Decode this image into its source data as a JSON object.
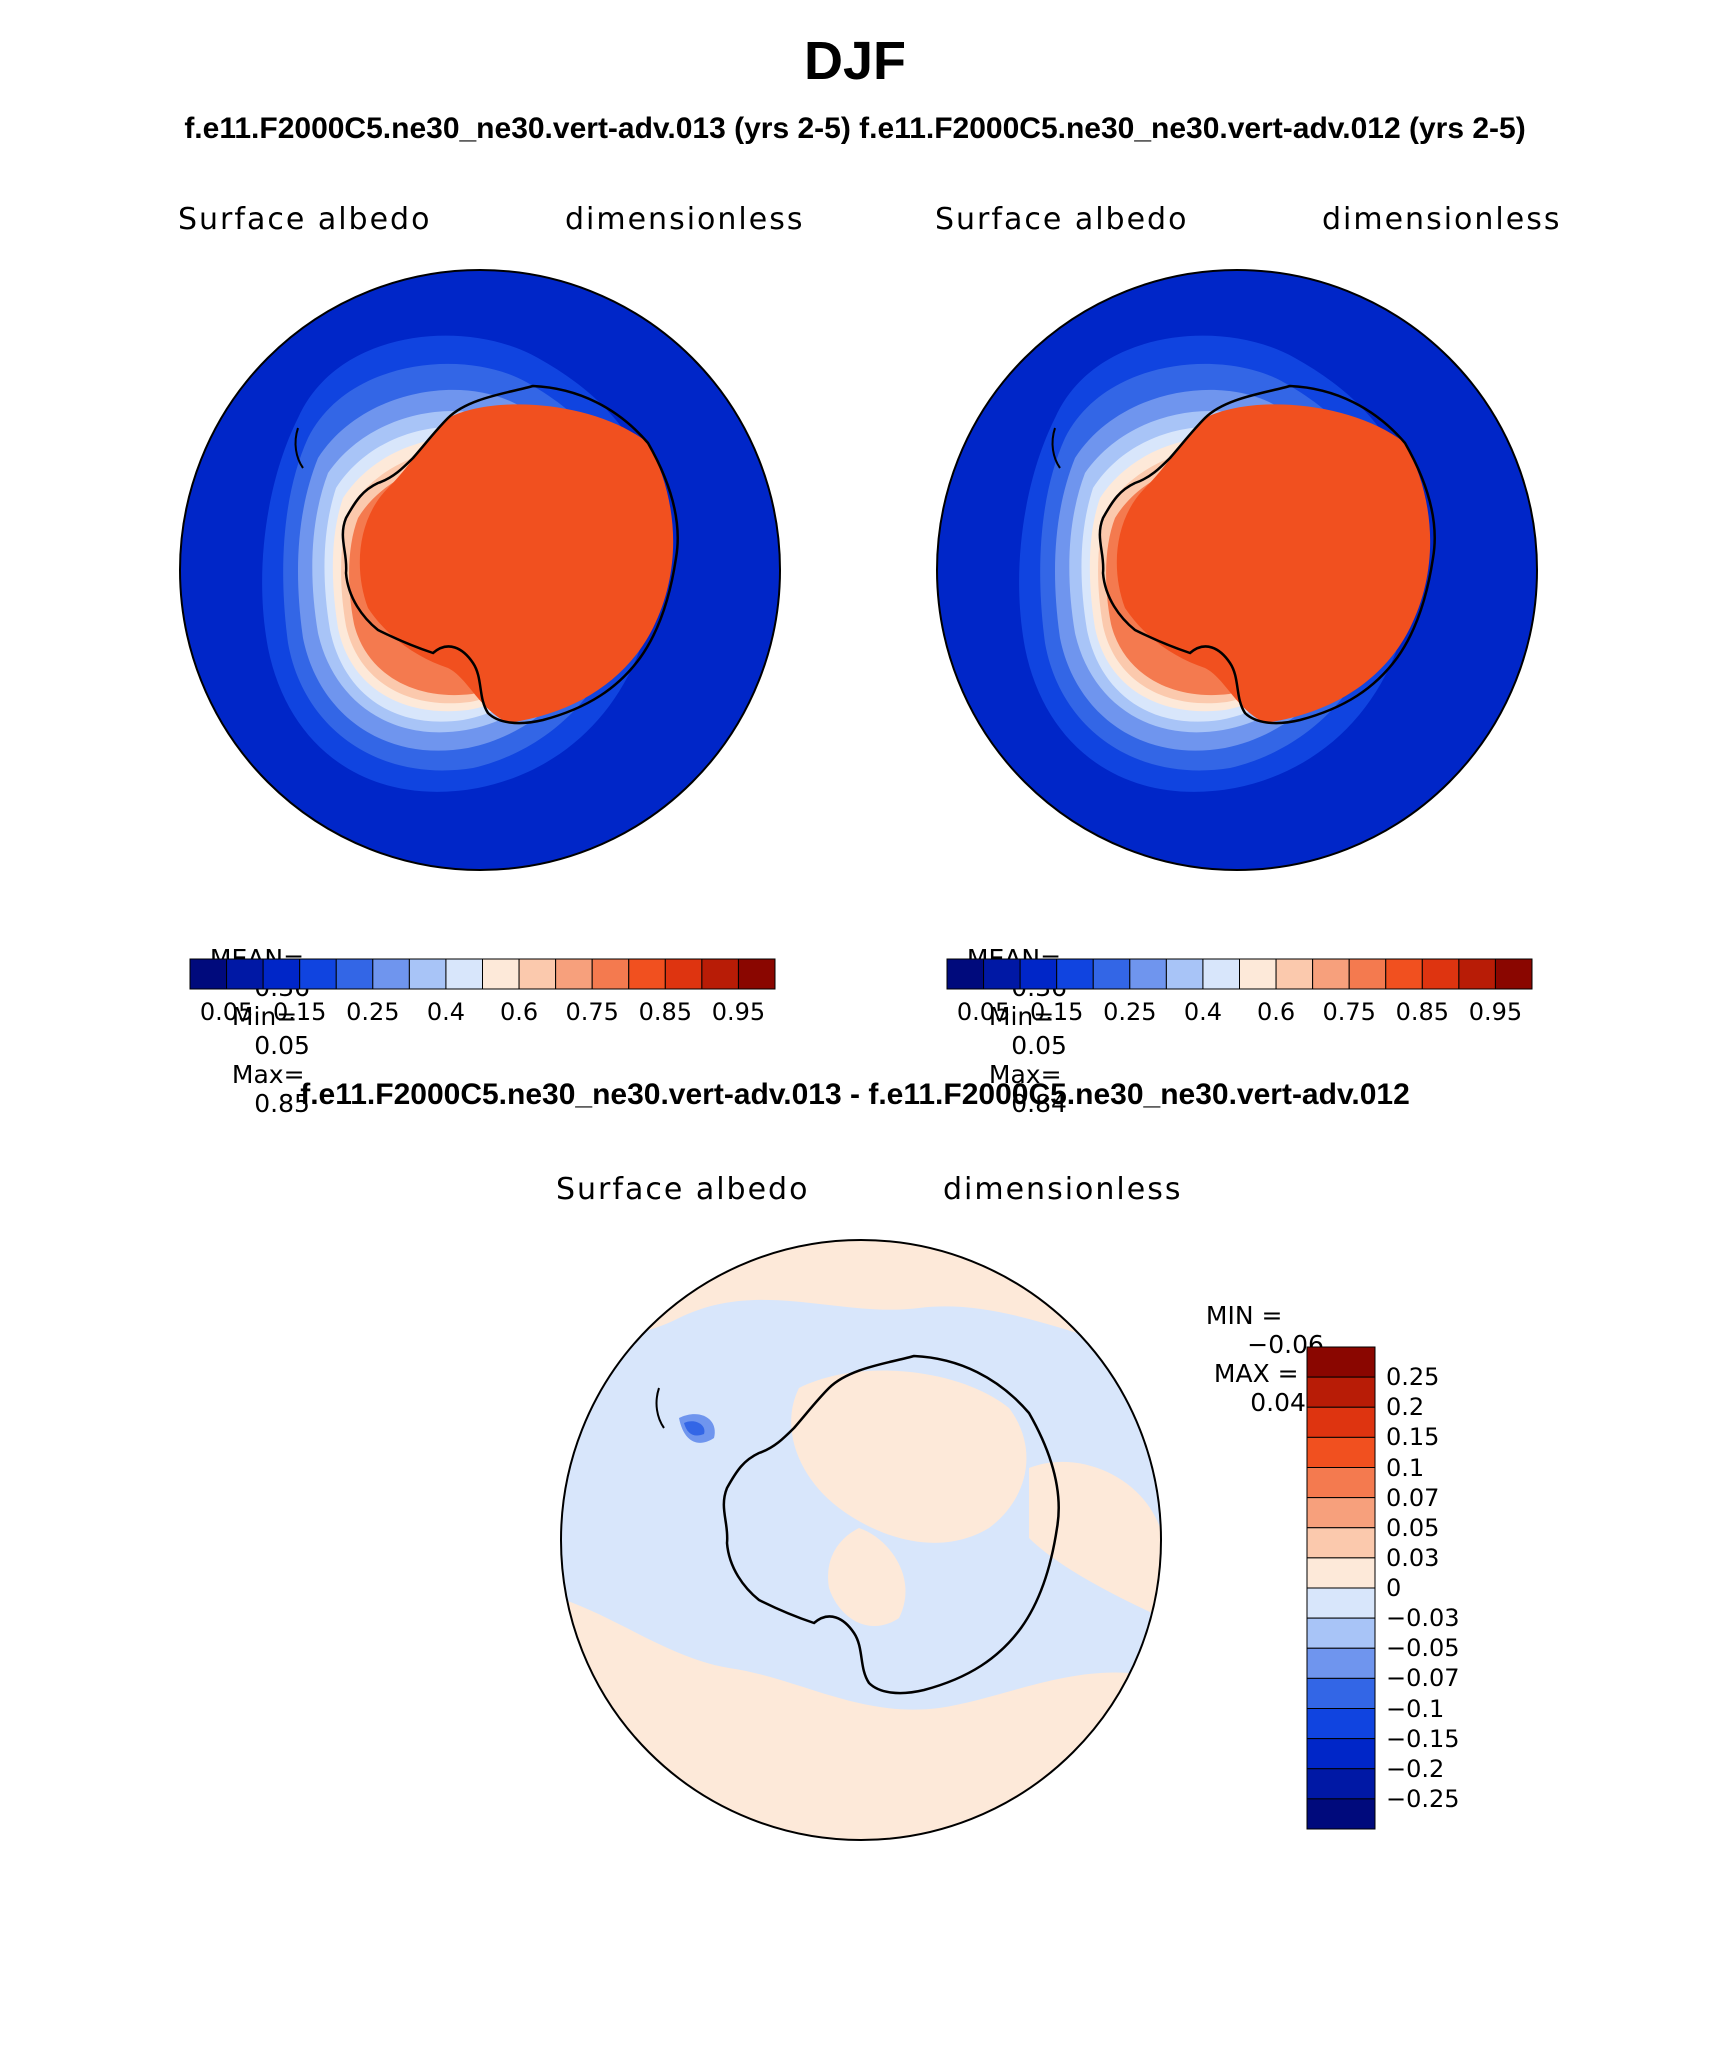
{
  "figure": {
    "title": "DJF",
    "subtitle_top": "f.e11.F2000C5.ne30_ne30.vert-adv.013 (yrs 2-5)  f.e11.F2000C5.ne30_ne30.vert-adv.012 (yrs 2-5)",
    "subtitle_diff": "f.e11.F2000C5.ne30_ne30.vert-adv.013 - f.e11.F2000C5.ne30_ne30.vert-adv.012"
  },
  "panels": [
    {
      "variable": "Surface albedo",
      "units": "dimensionless",
      "stats": {
        "mean_label": "MEAN=",
        "mean": "0.36",
        "min_label": "Min=",
        "min": "0.05",
        "max_label": "Max=",
        "max": "0.85"
      }
    },
    {
      "variable": "Surface albedo",
      "units": "dimensionless",
      "stats": {
        "mean_label": "MEAN=",
        "mean": "0.36",
        "min_label": "Min=",
        "min": "0.05",
        "max_label": "Max=",
        "max": "0.84"
      }
    }
  ],
  "diff_panel": {
    "variable": "Surface albedo",
    "units": "dimensionless",
    "stats": {
      "min_label": "MIN =",
      "min": "−0.06",
      "max_label": "MAX =",
      "max": "0.04"
    }
  },
  "chart_data": [
    {
      "type": "heatmap",
      "projection": "south-polar-stereographic",
      "field": "Surface albedo",
      "units": "dimensionless",
      "colorbar": {
        "orientation": "horizontal",
        "tick_labels": [
          "0.05",
          "0.15",
          "0.25",
          "0.4",
          "0.6",
          "0.75",
          "0.85",
          "0.95"
        ],
        "colors": [
          "#000a7c",
          "#0018a5",
          "#0026c8",
          "#1044e0",
          "#3366e6",
          "#6f95ee",
          "#a8c4f7",
          "#d8e6fb",
          "#fde9d9",
          "#fbc9ad",
          "#f7a07c",
          "#f47a4f",
          "#f1501f",
          "#de3410",
          "#b81c06",
          "#8a0600"
        ]
      },
      "stats": {
        "mean": 0.36,
        "min": 0.05,
        "max": 0.85
      }
    },
    {
      "type": "heatmap",
      "projection": "south-polar-stereographic",
      "field": "Surface albedo",
      "units": "dimensionless",
      "colorbar": {
        "orientation": "horizontal",
        "tick_labels": [
          "0.05",
          "0.15",
          "0.25",
          "0.4",
          "0.6",
          "0.75",
          "0.85",
          "0.95"
        ],
        "colors": [
          "#000a7c",
          "#0018a5",
          "#0026c8",
          "#1044e0",
          "#3366e6",
          "#6f95ee",
          "#a8c4f7",
          "#d8e6fb",
          "#fde9d9",
          "#fbc9ad",
          "#f7a07c",
          "#f47a4f",
          "#f1501f",
          "#de3410",
          "#b81c06",
          "#8a0600"
        ]
      },
      "stats": {
        "mean": 0.36,
        "min": 0.05,
        "max": 0.84
      }
    },
    {
      "type": "heatmap",
      "projection": "south-polar-stereographic",
      "field": "Surface albedo",
      "units": "dimensionless",
      "colorbar": {
        "orientation": "vertical",
        "tick_labels": [
          "0.25",
          "0.2",
          "0.15",
          "0.1",
          "0.07",
          "0.05",
          "0.03",
          "0",
          "−0.03",
          "−0.05",
          "−0.07",
          "−0.1",
          "−0.15",
          "−0.2",
          "−0.25"
        ],
        "colors": [
          "#8a0600",
          "#b81c06",
          "#de3410",
          "#f1501f",
          "#f47a4f",
          "#f7a07c",
          "#fbc9ad",
          "#fde9d9",
          "#d8e6fb",
          "#a8c4f7",
          "#6f95ee",
          "#3366e6",
          "#1044e0",
          "#0026c8",
          "#0018a5",
          "#000a7c"
        ]
      },
      "stats": {
        "min": -0.06,
        "max": 0.04
      }
    }
  ]
}
